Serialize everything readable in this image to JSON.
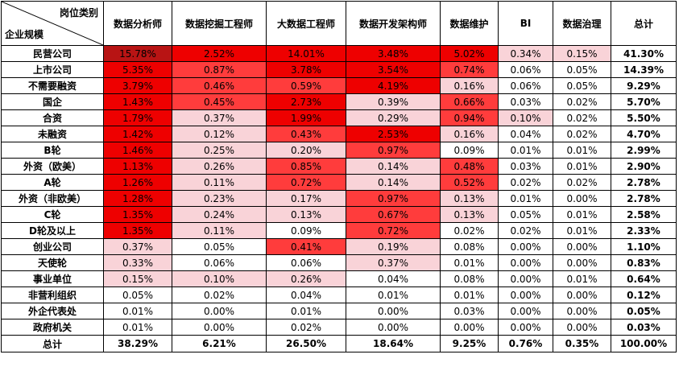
{
  "chart_data": {
    "type": "heatmap",
    "corner": {
      "column_axis_label": "岗位类别",
      "row_axis_label": "企业规模"
    },
    "columns": [
      "数据分析师",
      "数据挖掘工程师",
      "大数据工程师",
      "数据开发架构师",
      "数据维护",
      "BI",
      "数据治理",
      "总计"
    ],
    "rows": [
      {
        "label": "民营公司",
        "values": [
          "15.78%",
          "2.52%",
          "14.01%",
          "3.48%",
          "5.02%",
          "0.34%",
          "0.15%",
          "41.30%"
        ]
      },
      {
        "label": "上市公司",
        "values": [
          "5.35%",
          "0.87%",
          "3.78%",
          "3.54%",
          "0.74%",
          "0.06%",
          "0.05%",
          "14.39%"
        ]
      },
      {
        "label": "不需要融资",
        "values": [
          "3.79%",
          "0.46%",
          "0.59%",
          "4.19%",
          "0.16%",
          "0.06%",
          "0.05%",
          "9.29%"
        ]
      },
      {
        "label": "国企",
        "values": [
          "1.43%",
          "0.45%",
          "2.73%",
          "0.39%",
          "0.66%",
          "0.03%",
          "0.02%",
          "5.70%"
        ]
      },
      {
        "label": "合资",
        "values": [
          "1.79%",
          "0.37%",
          "1.99%",
          "0.29%",
          "0.94%",
          "0.10%",
          "0.02%",
          "5.50%"
        ]
      },
      {
        "label": "未融资",
        "values": [
          "1.42%",
          "0.12%",
          "0.43%",
          "2.53%",
          "0.16%",
          "0.04%",
          "0.02%",
          "4.70%"
        ]
      },
      {
        "label": "B轮",
        "values": [
          "1.46%",
          "0.25%",
          "0.20%",
          "0.97%",
          "0.09%",
          "0.01%",
          "0.01%",
          "2.99%"
        ]
      },
      {
        "label": "外资（欧美）",
        "values": [
          "1.13%",
          "0.26%",
          "0.85%",
          "0.14%",
          "0.48%",
          "0.03%",
          "0.01%",
          "2.90%"
        ]
      },
      {
        "label": "A轮",
        "values": [
          "1.26%",
          "0.11%",
          "0.72%",
          "0.14%",
          "0.52%",
          "0.02%",
          "0.02%",
          "2.78%"
        ]
      },
      {
        "label": "外资（非欧美）",
        "values": [
          "1.28%",
          "0.23%",
          "0.17%",
          "0.97%",
          "0.13%",
          "0.01%",
          "0.00%",
          "2.78%"
        ]
      },
      {
        "label": "C轮",
        "values": [
          "1.35%",
          "0.24%",
          "0.13%",
          "0.67%",
          "0.13%",
          "0.05%",
          "0.01%",
          "2.58%"
        ]
      },
      {
        "label": "D轮及以上",
        "values": [
          "1.35%",
          "0.11%",
          "0.09%",
          "0.72%",
          "0.02%",
          "0.02%",
          "0.01%",
          "2.33%"
        ]
      },
      {
        "label": "创业公司",
        "values": [
          "0.37%",
          "0.05%",
          "0.41%",
          "0.19%",
          "0.08%",
          "0.00%",
          "0.00%",
          "1.10%"
        ]
      },
      {
        "label": "天使轮",
        "values": [
          "0.33%",
          "0.06%",
          "0.06%",
          "0.37%",
          "0.01%",
          "0.00%",
          "0.00%",
          "0.83%"
        ]
      },
      {
        "label": "事业单位",
        "values": [
          "0.15%",
          "0.10%",
          "0.26%",
          "0.04%",
          "0.08%",
          "0.00%",
          "0.01%",
          "0.64%"
        ]
      },
      {
        "label": "非营利组织",
        "values": [
          "0.05%",
          "0.02%",
          "0.04%",
          "0.01%",
          "0.01%",
          "0.00%",
          "0.00%",
          "0.12%"
        ]
      },
      {
        "label": "外企代表处",
        "values": [
          "0.01%",
          "0.00%",
          "0.01%",
          "0.00%",
          "0.03%",
          "0.00%",
          "0.00%",
          "0.05%"
        ]
      },
      {
        "label": "政府机关",
        "values": [
          "0.01%",
          "0.00%",
          "0.02%",
          "0.00%",
          "0.00%",
          "0.00%",
          "0.00%",
          "0.03%"
        ]
      }
    ],
    "total_row": {
      "label": "总计",
      "values": [
        "38.29%",
        "6.21%",
        "26.50%",
        "18.64%",
        "9.25%",
        "0.76%",
        "0.35%",
        "100.00%"
      ]
    },
    "grid": true
  },
  "colors": {
    "border": "#000000",
    "background": "#ffffff",
    "scale_lowest": "#ffffff",
    "scale_low": "#f9d3d8",
    "scale_mid": "#ff3c3c",
    "scale_high": "#ee0000",
    "scale_max": "#b81414"
  }
}
